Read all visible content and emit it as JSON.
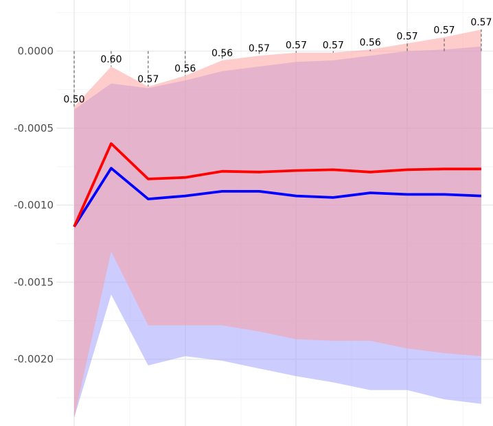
{
  "chart_data": {
    "type": "line",
    "title": "",
    "xlabel": "",
    "ylabel": "",
    "x": [
      1,
      2,
      3,
      4,
      5,
      6,
      7,
      8,
      9,
      10,
      11,
      12
    ],
    "ylim": [
      -0.00238,
      0.00026
    ],
    "yticks": [
      0.0,
      -0.0005,
      -0.001,
      -0.0015,
      -0.002
    ],
    "ytick_labels": [
      "0.0000",
      "-0.0005",
      "-0.0010",
      "-0.0015",
      "-0.0020"
    ],
    "grid": true,
    "legend": "none",
    "series": [
      {
        "color": "#ff0000",
        "band_color": "#ff9999",
        "values": [
          -0.00114,
          -0.0006,
          -0.00083,
          -0.00082,
          -0.00078,
          -0.000785,
          -0.000775,
          -0.00077,
          -0.000785,
          -0.00077,
          -0.000765,
          -0.000765
        ],
        "lower": [
          -0.00238,
          -0.0013,
          -0.00178,
          -0.00178,
          -0.00178,
          -0.00182,
          -0.00187,
          -0.00188,
          -0.00188,
          -0.00193,
          -0.00196,
          -0.00198
        ],
        "upper": [
          -0.00036,
          -0.0001,
          -0.00023,
          -0.00016,
          -6e-05,
          -3e-05,
          -1e-05,
          -1e-05,
          1e-05,
          5e-05,
          9e-05,
          0.00014
        ]
      },
      {
        "color": "#0000ff",
        "band_color": "#9999ff",
        "values": [
          -0.00114,
          -0.00076,
          -0.00096,
          -0.00094,
          -0.00091,
          -0.00091,
          -0.00094,
          -0.00095,
          -0.00092,
          -0.00093,
          -0.00093,
          -0.00094
        ],
        "lower": [
          -0.00238,
          -0.00158,
          -0.00204,
          -0.00198,
          -0.00201,
          -0.00206,
          -0.00211,
          -0.00215,
          -0.0022,
          -0.0022,
          -0.00226,
          -0.00229
        ],
        "upper": [
          -0.00038,
          -0.00021,
          -0.00024,
          -0.00019,
          -0.00013,
          -0.0001,
          -7e-05,
          -6e-05,
          -3e-05,
          0.0,
          1e-05,
          3e-05
        ]
      }
    ],
    "annotations": {
      "labels": [
        "0.50",
        "0.60",
        "0.57",
        "0.56",
        "0.56",
        "0.57",
        "0.57",
        "0.57",
        "0.56",
        "0.57",
        "0.57",
        "0.57"
      ],
      "y": [
        -0.00036,
        -0.0001,
        -0.00023,
        -0.00016,
        -6e-05,
        -3e-05,
        -1e-05,
        -1e-05,
        1e-05,
        5e-05,
        9e-05,
        0.00014
      ]
    }
  }
}
